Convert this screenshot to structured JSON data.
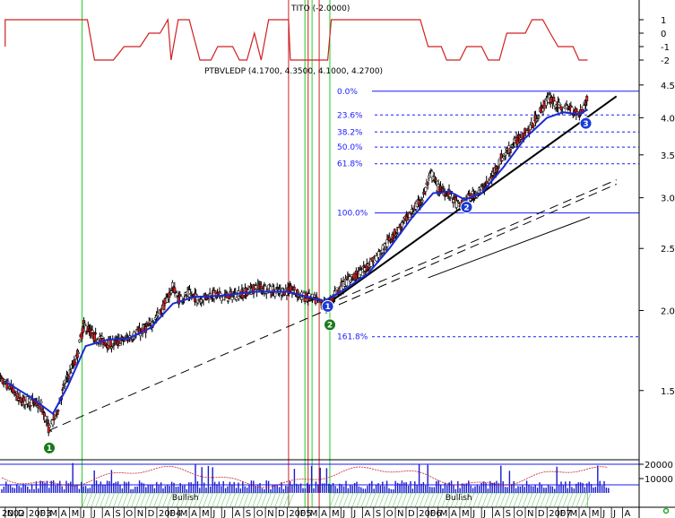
{
  "chart_data": {
    "type": "candlestick",
    "ticker": "PTBVLEDP",
    "ohlc_label": "PTBVLEDP (4.1700, 4.3500, 4.1000, 4.2700)",
    "y_scale": "log",
    "ylim": [
      1.2,
      4.6
    ],
    "y_ticks": [
      "1.5",
      "2.0",
      "2.5",
      "3.0",
      "3.5",
      "4.0",
      "4.5"
    ],
    "x_ticks": [
      "N",
      "D",
      "2003",
      "F",
      "M",
      "A",
      "M",
      "J",
      "J",
      "A",
      "S",
      "O",
      "N",
      "D",
      "2004",
      "F",
      "M",
      "A",
      "M",
      "J",
      "J",
      "A",
      "S",
      "O",
      "N",
      "D",
      "2005",
      "F",
      "M",
      "A",
      "M",
      "J",
      "J",
      "A",
      "S",
      "O",
      "N",
      "D",
      "2006",
      "F",
      "M",
      "A",
      "M",
      "J",
      "J",
      "A",
      "S",
      "O",
      "N",
      "D",
      "2007",
      "F",
      "M",
      "A",
      "M",
      "J",
      "J",
      "A"
    ],
    "x_first_label": "2002",
    "price_path": [
      [
        "2002-10-01",
        1.58
      ],
      [
        "2002-11-15",
        1.52
      ],
      [
        "2002-12-10",
        1.45
      ],
      [
        "2003-01-15",
        1.44
      ],
      [
        "2003-02-10",
        1.42
      ],
      [
        "2003-03-05",
        1.3
      ],
      [
        "2003-03-25",
        1.38
      ],
      [
        "2003-04-20",
        1.55
      ],
      [
        "2003-05-20",
        1.68
      ],
      [
        "2003-06-10",
        1.9
      ],
      [
        "2003-07-10",
        1.82
      ],
      [
        "2003-08-20",
        1.77
      ],
      [
        "2003-10-01",
        1.8
      ],
      [
        "2003-11-15",
        1.85
      ],
      [
        "2003-12-15",
        1.9
      ],
      [
        "2004-01-15",
        2.0
      ],
      [
        "2004-02-15",
        2.18
      ],
      [
        "2004-03-01",
        2.08
      ],
      [
        "2004-04-01",
        2.12
      ],
      [
        "2004-05-01",
        2.08
      ],
      [
        "2004-06-01",
        2.12
      ],
      [
        "2004-07-15",
        2.1
      ],
      [
        "2004-09-01",
        2.13
      ],
      [
        "2004-10-15",
        2.18
      ],
      [
        "2004-12-01",
        2.14
      ],
      [
        "2005-01-15",
        2.15
      ],
      [
        "2005-02-15",
        2.1
      ],
      [
        "2005-03-10",
        2.09
      ],
      [
        "2005-04-01",
        2.06
      ],
      [
        "2005-04-25",
        2.03
      ],
      [
        "2005-05-15",
        2.12
      ],
      [
        "2005-06-15",
        2.22
      ],
      [
        "2005-08-01",
        2.3
      ],
      [
        "2005-09-15",
        2.45
      ],
      [
        "2005-11-15",
        2.7
      ],
      [
        "2006-01-15",
        2.98
      ],
      [
        "2006-02-10",
        3.28
      ],
      [
        "2006-03-01",
        3.1
      ],
      [
        "2006-04-01",
        3.05
      ],
      [
        "2006-05-01",
        2.9
      ],
      [
        "2006-05-20",
        2.98
      ],
      [
        "2006-06-15",
        3.05
      ],
      [
        "2006-07-20",
        3.15
      ],
      [
        "2006-08-25",
        3.45
      ],
      [
        "2006-10-01",
        3.65
      ],
      [
        "2006-11-15",
        3.85
      ],
      [
        "2006-12-25",
        4.2
      ],
      [
        "2007-01-10",
        4.3
      ],
      [
        "2007-02-10",
        4.12
      ],
      [
        "2007-03-01",
        4.15
      ],
      [
        "2007-04-01",
        4.05
      ],
      [
        "2007-04-25",
        4.27
      ]
    ],
    "moving_average": [
      [
        "2002-11-01",
        1.55
      ],
      [
        "2003-01-15",
        1.46
      ],
      [
        "2003-03-15",
        1.38
      ],
      [
        "2003-04-25",
        1.52
      ],
      [
        "2003-06-15",
        1.76
      ],
      [
        "2003-08-15",
        1.8
      ],
      [
        "2003-10-15",
        1.81
      ],
      [
        "2003-12-15",
        1.88
      ],
      [
        "2004-02-15",
        2.05
      ],
      [
        "2004-04-15",
        2.1
      ],
      [
        "2004-07-01",
        2.11
      ],
      [
        "2004-10-01",
        2.14
      ],
      [
        "2005-01-01",
        2.14
      ],
      [
        "2005-03-01",
        2.1
      ],
      [
        "2005-04-15",
        2.07
      ],
      [
        "2005-06-01",
        2.14
      ],
      [
        "2005-08-15",
        2.28
      ],
      [
        "2005-10-15",
        2.5
      ],
      [
        "2005-12-15",
        2.78
      ],
      [
        "2006-02-15",
        3.05
      ],
      [
        "2006-04-01",
        3.07
      ],
      [
        "2006-05-15",
        2.98
      ],
      [
        "2006-07-01",
        3.05
      ],
      [
        "2006-09-01",
        3.35
      ],
      [
        "2006-11-01",
        3.72
      ],
      [
        "2007-01-01",
        4.0
      ],
      [
        "2007-02-15",
        4.08
      ],
      [
        "2007-04-01",
        4.05
      ],
      [
        "2007-04-25",
        4.12
      ]
    ],
    "trendlines": [
      {
        "style": "solid",
        "from": [
          "2005-04-20",
          2.04
        ],
        "to": [
          "2007-07-15",
          4.32
        ]
      },
      {
        "style": "dashed",
        "from": [
          "2003-03-05",
          1.3
        ],
        "to": [
          "2007-07-15",
          3.15
        ]
      },
      {
        "style": "dashed",
        "from": [
          "2005-04-20",
          2.04
        ],
        "to": [
          "2007-07-15",
          3.2
        ]
      },
      {
        "style": "thin",
        "from": [
          "2006-02-01",
          2.25
        ],
        "to": [
          "2007-05-01",
          2.8
        ]
      }
    ],
    "fibonacci": {
      "levels": [
        {
          "label": "0.0%",
          "value": 4.4,
          "style": "solid"
        },
        {
          "label": "23.6%",
          "value": 4.04,
          "style": "dashed"
        },
        {
          "label": "38.2%",
          "value": 3.8,
          "style": "dashed"
        },
        {
          "label": "50.0%",
          "value": 3.6,
          "style": "dashed"
        },
        {
          "label": "61.8%",
          "value": 3.39,
          "style": "dashed"
        },
        {
          "label": "100.0%",
          "value": 2.84,
          "style": "solid"
        },
        {
          "label": "161.8%",
          "value": 1.82,
          "style": "dashed"
        }
      ]
    },
    "markers": [
      {
        "label": "1",
        "color": "#1a7a1a",
        "at": [
          "2003-03-05",
          1.22
        ]
      },
      {
        "label": "2",
        "color": "#1a7a1a",
        "at": [
          "2005-05-01",
          1.9
        ]
      },
      {
        "label": "1",
        "color": "#1a3ad6",
        "at": [
          "2005-04-25",
          2.03
        ]
      },
      {
        "label": "2",
        "color": "#1a3ad6",
        "at": [
          "2006-05-20",
          2.9
        ]
      },
      {
        "label": "3",
        "color": "#1a3ad6",
        "at": [
          "2007-04-20",
          3.92
        ]
      }
    ],
    "verticals": [
      {
        "date": "2003-06-05",
        "color": "#22cc22"
      },
      {
        "date": "2005-01-05",
        "color": "#cc2222"
      },
      {
        "date": "2005-02-20",
        "color": "#22cc22"
      },
      {
        "date": "2005-03-01",
        "color": "#cc2222"
      },
      {
        "date": "2005-03-12",
        "color": "#22cc22"
      },
      {
        "date": "2005-04-01",
        "color": "#cc2222"
      },
      {
        "date": "2005-05-01",
        "color": "#22cc22"
      }
    ],
    "tito": {
      "label": "TITO (-2.0000)",
      "y_ticks": [
        "1",
        "0",
        "-1",
        "-2"
      ],
      "segments": [
        [
          "2002-11-01",
          -1
        ],
        [
          "2002-11-01",
          1
        ],
        [
          "2003-06-20",
          1
        ],
        [
          "2003-07-10",
          -2
        ],
        [
          "2003-09-01",
          -2
        ],
        [
          "2003-10-01",
          -1
        ],
        [
          "2003-11-15",
          -1
        ],
        [
          "2003-12-10",
          0
        ],
        [
          "2004-01-10",
          0
        ],
        [
          "2004-02-01",
          1
        ],
        [
          "2004-02-10",
          -2
        ],
        [
          "2004-03-01",
          1
        ],
        [
          "2004-04-01",
          1
        ],
        [
          "2004-05-01",
          -2
        ],
        [
          "2004-06-01",
          -2
        ],
        [
          "2004-06-20",
          -1
        ],
        [
          "2004-08-01",
          -1
        ],
        [
          "2004-08-20",
          -2
        ],
        [
          "2004-09-10",
          -2
        ],
        [
          "2004-10-01",
          0
        ],
        [
          "2004-10-20",
          -2
        ],
        [
          "2004-11-10",
          1
        ],
        [
          "2005-01-05",
          1
        ],
        [
          "2005-01-10",
          -2
        ],
        [
          "2005-04-25",
          -2
        ],
        [
          "2005-05-05",
          1
        ],
        [
          "2006-01-10",
          1
        ],
        [
          "2006-02-01",
          -1
        ],
        [
          "2006-03-10",
          -1
        ],
        [
          "2006-03-25",
          -2
        ],
        [
          "2006-05-01",
          -2
        ],
        [
          "2006-05-20",
          -1
        ],
        [
          "2006-07-01",
          -1
        ],
        [
          "2006-07-20",
          -2
        ],
        [
          "2006-08-20",
          -2
        ],
        [
          "2006-09-10",
          0
        ],
        [
          "2006-11-01",
          0
        ],
        [
          "2006-11-20",
          1
        ],
        [
          "2006-12-20",
          1
        ],
        [
          "2007-01-10",
          0
        ],
        [
          "2007-02-01",
          -1
        ],
        [
          "2007-03-15",
          -1
        ],
        [
          "2007-04-01",
          -2
        ],
        [
          "2007-04-25",
          -2
        ]
      ]
    },
    "volume": {
      "y_ticks": [
        "20000",
        "10000"
      ],
      "bands": [
        {
          "label": "Bullish",
          "from": "2003-06-05",
          "to": "2005-01-05"
        },
        {
          "label": "Bullish",
          "from": "2005-05-01",
          "to": "2007-04-25"
        }
      ]
    }
  }
}
